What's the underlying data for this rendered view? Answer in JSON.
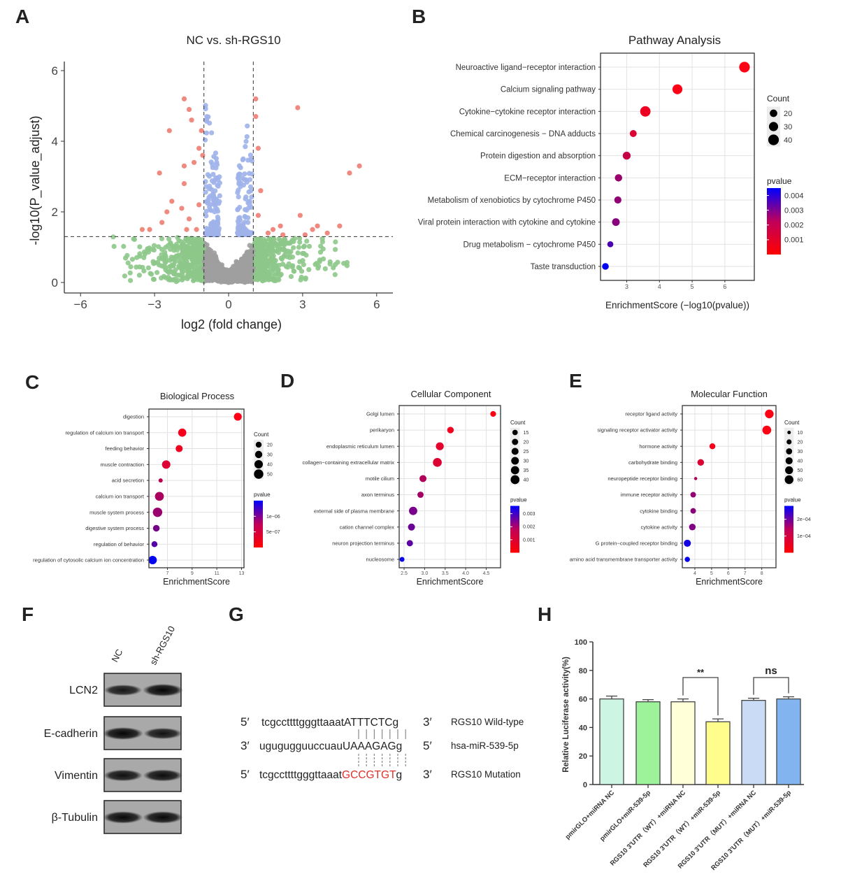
{
  "panel_labels": [
    "A",
    "B",
    "C",
    "D",
    "E",
    "F",
    "G",
    "H"
  ],
  "chart_data": [
    {
      "panel": "A",
      "type": "scatter",
      "title": "NC vs. sh-RGS10",
      "xlabel": "log2 (fold change)",
      "ylabel": "-log10(P_value_adjust)",
      "xlim": [
        -6.6,
        6.6
      ],
      "ylim": [
        0,
        6.3
      ],
      "xticks": [
        -6,
        -3,
        0,
        3,
        6
      ],
      "yticks": [
        0,
        2,
        4,
        6
      ],
      "threshold_log2fc": [
        -1,
        1
      ],
      "threshold_neglog10p": 1.3,
      "grid": false,
      "colors": {
        "significant": "#f08a80",
        "p_only": "#9fb3ea",
        "fc_only": "#8dc88a",
        "not_significant": "#9e9e9e"
      },
      "significant_points": [
        [
          -1.8,
          5.2
        ],
        [
          -1.6,
          4.9
        ],
        [
          -2.4,
          4.3
        ],
        [
          -1.5,
          4.6
        ],
        [
          -1.1,
          4.3
        ],
        [
          -2.8,
          3.1
        ],
        [
          -1.8,
          3.3
        ],
        [
          -1.4,
          3.4
        ],
        [
          -1.2,
          3.8
        ],
        [
          -1.05,
          3.6
        ],
        [
          -1.8,
          2.8
        ],
        [
          -2.3,
          2.3
        ],
        [
          -2.5,
          2.0
        ],
        [
          -1.9,
          2.1
        ],
        [
          -1.6,
          1.8
        ],
        [
          -3.2,
          1.5
        ],
        [
          -3.5,
          1.5
        ],
        [
          -2.7,
          1.7
        ],
        [
          -1.7,
          1.5
        ],
        [
          -1.3,
          1.5
        ],
        [
          -1.2,
          2.2
        ],
        [
          1.1,
          5.2
        ],
        [
          1.1,
          4.7
        ],
        [
          1.2,
          3.8
        ],
        [
          2.8,
          4.95
        ],
        [
          1.3,
          2.6
        ],
        [
          2.1,
          1.6
        ],
        [
          1.8,
          1.5
        ],
        [
          2.9,
          1.9
        ],
        [
          3.4,
          1.5
        ],
        [
          3.6,
          1.6
        ],
        [
          4.5,
          1.6
        ],
        [
          4.9,
          3.1
        ],
        [
          5.3,
          3.3
        ],
        [
          3.1,
          1.35
        ],
        [
          1.6,
          1.4
        ],
        [
          2.2,
          1.35
        ],
        [
          4.0,
          1.4
        ],
        [
          1.2,
          1.9
        ]
      ]
    },
    {
      "panel": "B",
      "type": "scatter",
      "title": "Pathway Analysis",
      "xlabel": "EnrichmentScore (−log10(pvalue))",
      "xticks": [
        3,
        4,
        5,
        6
      ],
      "xlim": [
        2.2,
        6.9
      ],
      "grid": true,
      "legend": "right",
      "terms": [
        "Neuroactive ligand−receptor interaction",
        "Calcium signaling pathway",
        "Cytokine−cytokine receptor interaction",
        "Chemical carcinogenesis − DNA adducts",
        "Protein digestion and absorption",
        "ECM−receptor interaction",
        "Metabolism of xenobiotics by cytochrome P450",
        "Viral protein interaction with cytokine and cytokine",
        "Drug metabolism − cytochrome P450",
        "Taste transduction"
      ],
      "scores": [
        6.6,
        4.55,
        3.57,
        3.2,
        3.0,
        2.75,
        2.73,
        2.67,
        2.5,
        2.35
      ],
      "counts": [
        40,
        35,
        38,
        17,
        22,
        19,
        18,
        21,
        13,
        16
      ],
      "pvalues": [
        3e-07,
        3e-05,
        0.0003,
        0.0006,
        0.001,
        0.0018,
        0.0019,
        0.0021,
        0.0032,
        0.0045
      ],
      "size_legend": {
        "title": "Count",
        "values": [
          20,
          30,
          40
        ]
      },
      "color_legend": {
        "title": "pvalue",
        "ticks": [
          "0.004",
          "0.003",
          "0.002",
          "0.001"
        ],
        "tick_values": [
          0.004,
          0.003,
          0.002,
          0.001
        ],
        "max": 0.0045
      }
    },
    {
      "panel": "C",
      "type": "scatter",
      "title": "Biological Process",
      "xlabel": "EnrichmentScore",
      "xticks": [
        7,
        9,
        11,
        13
      ],
      "xlim": [
        5.5,
        13.2
      ],
      "grid": true,
      "legend": "right",
      "terms": [
        "digestion",
        "regulation of calcium ion transport",
        "feeding behavior",
        "muscle contraction",
        "acid secretion",
        "calcium ion transport",
        "muscle system process",
        "digestive system process",
        "regulation of behavior",
        "regulation of cytosolic calcium ion concentration"
      ],
      "scores": [
        12.7,
        8.2,
        7.95,
        6.9,
        6.45,
        6.35,
        6.2,
        6.1,
        5.95,
        5.8
      ],
      "counts": [
        35,
        38,
        28,
        40,
        10,
        45,
        50,
        25,
        20,
        40
      ],
      "pvalues": [
        1e-08,
        5e-08,
        8e-08,
        2e-07,
        4e-07,
        5e-07,
        6e-07,
        8e-07,
        1e-06,
        1.5e-06
      ],
      "size_legend": {
        "title": "Count",
        "values": [
          20,
          30,
          40,
          50
        ]
      },
      "color_legend": {
        "title": "pvalue",
        "ticks": [
          "1e−06",
          "5e−07"
        ],
        "tick_values": [
          1e-06,
          5e-07
        ],
        "max": 1.5e-06
      }
    },
    {
      "panel": "D",
      "type": "scatter",
      "title": "Cellular Component",
      "xlabel": "EnrichmentScore",
      "xticks": [
        "2.5",
        "3.0",
        "3.5",
        "4.0",
        "4.5"
      ],
      "xtick_values": [
        2.5,
        3.0,
        3.5,
        4.0,
        4.5
      ],
      "xlim": [
        2.38,
        4.85
      ],
      "grid": true,
      "legend": "right",
      "terms": [
        "Golgi lumen",
        "perikaryon",
        "endoplasmic reticulum lumen",
        "collagen−containing extracellular matrix",
        "motile cilium",
        "axon terminus",
        "external side of plasma membrane",
        "cation channel complex",
        "neuron projection terminus",
        "nucleosome"
      ],
      "scores": [
        4.67,
        3.63,
        3.37,
        3.31,
        2.96,
        2.9,
        2.72,
        2.68,
        2.64,
        2.45
      ],
      "counts": [
        17,
        22,
        32,
        40,
        25,
        20,
        35,
        25,
        20,
        12
      ],
      "pvalues": [
        2e-05,
        0.0002,
        0.0004,
        0.0005,
        0.0011,
        0.0013,
        0.0019,
        0.0021,
        0.0023,
        0.0035
      ],
      "size_legend": {
        "title": "Count",
        "values": [
          15,
          20,
          25,
          30,
          35,
          40
        ]
      },
      "color_legend": {
        "title": "pvalue",
        "ticks": [
          "0.003",
          "0.002",
          "0.001"
        ],
        "tick_values": [
          0.003,
          0.002,
          0.001
        ],
        "max": 0.0036
      }
    },
    {
      "panel": "E",
      "type": "scatter",
      "title": "Molecular Function",
      "xlabel": "EnrichmentScore",
      "xticks": [
        4,
        5,
        6,
        7,
        8
      ],
      "xlim": [
        3.25,
        8.85
      ],
      "grid": true,
      "legend": "right",
      "terms": [
        "receptor ligand activity",
        "signaling receptor activator activity",
        "hormone activity",
        "carbohydrate binding",
        "neuropeptide receptor binding",
        "immune receptor activity",
        "cytokine binding",
        "cytokine activity",
        "G protein−coupled receptor binding",
        "amino acid transmembrane transporter activity"
      ],
      "scores": [
        8.45,
        8.3,
        5.05,
        4.35,
        4.05,
        3.9,
        3.9,
        3.85,
        3.55,
        3.55
      ],
      "counts": [
        60,
        62,
        28,
        35,
        8,
        25,
        25,
        35,
        40,
        22
      ],
      "pvalues": [
        3e-09,
        5e-09,
        8e-06,
        4e-05,
        9e-05,
        0.00012,
        0.00013,
        0.00014,
        0.00026,
        0.00027
      ],
      "size_legend": {
        "title": "Count",
        "values": [
          10,
          20,
          30,
          40,
          50,
          60
        ]
      },
      "color_legend": {
        "title": "pvalue",
        "ticks": [
          "2e−04",
          "1e−04"
        ],
        "tick_values": [
          0.0002,
          0.0001
        ],
        "max": 0.00028
      }
    },
    {
      "panel": "H",
      "type": "bar",
      "ylabel": "Relative Luciferase activity(%)",
      "ylim": [
        0,
        100
      ],
      "yticks": [
        0,
        20,
        40,
        60,
        80,
        100
      ],
      "categories": [
        "pmirGLO+miRNA NC",
        "pmirGLO+miR-539-5p",
        "RGS10 3'UTR（WT）+miRNA NC",
        "RGS10 3'UTR（WT）+miR-539-5p",
        "RGS10 3'UTR（MUT）+miRNA NC",
        "RGS10 3'UTR（MUT）+miR-539-5p"
      ],
      "values": [
        60,
        58,
        58,
        44,
        59,
        60
      ],
      "errors": [
        2,
        1.5,
        2,
        2,
        1.5,
        1.5
      ],
      "colors": [
        "#ccf5e4",
        "#9cf39a",
        "#ffffd8",
        "#fffd8c",
        "#c9dbf5",
        "#82b5f0"
      ],
      "significance": [
        {
          "from": 2,
          "to": 3,
          "label": "**"
        },
        {
          "from": 4,
          "to": 5,
          "label": "ns"
        }
      ]
    }
  ],
  "western_blot": {
    "columns": [
      "NC",
      "sh-RGS10"
    ],
    "rows": [
      {
        "label": "LCN2",
        "intensity": [
          0.75,
          1.0
        ]
      },
      {
        "label": "E-cadherin",
        "intensity": [
          1.0,
          0.8
        ]
      },
      {
        "label": "Vimentin",
        "intensity": [
          0.85,
          0.9
        ]
      },
      {
        "label": "β-Tubulin",
        "intensity": [
          0.95,
          0.95
        ]
      }
    ]
  },
  "sequence_alignment": {
    "rows": [
      {
        "left": "5′",
        "plain": "tcgccttttgggttaaat",
        "site": "ATTTCTC",
        "tail": "g",
        "right": "3′",
        "name": "RGS10 Wild-type",
        "site_color": "#222222"
      },
      {
        "left": "3′",
        "plain": "ugugugguuccuau",
        "site": "UAAAGAG",
        "tail": "g",
        "right": "5′",
        "name": "hsa-miR-539-5p",
        "site_color": "#222222"
      },
      {
        "left": "5′",
        "plain": "tcgccttttgggttaaat",
        "site": "GCCGTGT",
        "tail": "g",
        "right": "3′",
        "name": "RGS10 Mutation",
        "site_color": "#e0302a"
      }
    ]
  }
}
